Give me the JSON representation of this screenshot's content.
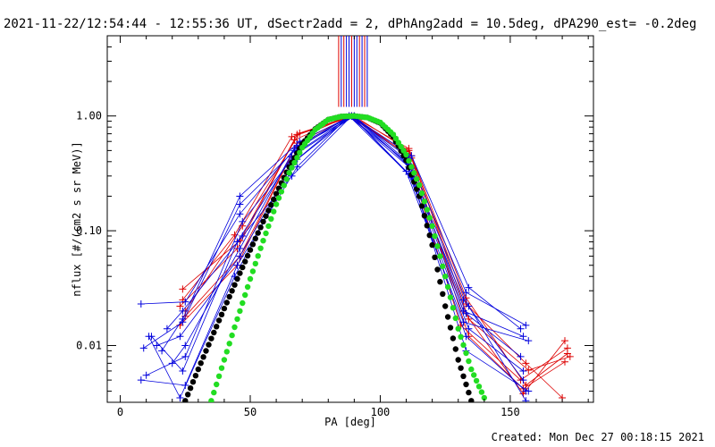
{
  "header": {
    "title": "2021-11-22/12:54:44 - 12:55:36 UT, dSectr2add = 2, dPhAng2add = 10.5deg, dPA290_est= -0.2deg"
  },
  "footer": {
    "created": "Created: Mon Dec 27 00:18:15 2021"
  },
  "colors": {
    "red": "#dd0000",
    "blue": "#0000dd",
    "black": "#000000",
    "green": "#22dd22"
  },
  "chart_data": {
    "type": "line",
    "title": "2021-11-22/12:54:44 - 12:55:36 UT, dSectr2add = 2, dPhAng2add = 10.5deg, dPA290_est= -0.2deg",
    "xlabel": "PA [deg]",
    "ylabel": "nflux [#/(cm2 s sr MeV)]",
    "xlim": [
      -5,
      182
    ],
    "ylim": [
      0.0032,
      5.0
    ],
    "yscale": "log",
    "grid": false,
    "x_ticks": [
      0,
      50,
      100,
      150
    ],
    "x_tick_labels": [
      "0",
      "50",
      "100",
      "150"
    ],
    "y_ticks": [
      0.01,
      0.1,
      1.0
    ],
    "y_tick_labels": [
      "0.01",
      "0.10",
      "1.00"
    ],
    "series": [
      {
        "color": "#dd0000",
        "x": [
          24,
          46,
          68,
          89,
          111,
          133,
          156,
          172
        ],
        "y": [
          0.031,
          0.082,
          0.69,
          1.0,
          0.52,
          0.026,
          0.0045,
          0.0085
        ]
      },
      {
        "color": "#dd0000",
        "x": [
          23,
          45,
          67,
          88,
          110,
          132,
          155,
          171
        ],
        "y": [
          0.022,
          0.07,
          0.62,
          1.0,
          0.49,
          0.02,
          0.0038,
          0.011
        ]
      },
      {
        "color": "#dd0000",
        "x": [
          25,
          46,
          68,
          89,
          112,
          134,
          157,
          173
        ],
        "y": [
          0.018,
          0.06,
          0.58,
          1.0,
          0.45,
          0.017,
          0.0061,
          0.008
        ]
      },
      {
        "color": "#dd0000",
        "x": [
          24,
          44,
          66,
          90,
          111,
          133,
          156,
          170
        ],
        "y": [
          0.025,
          0.092,
          0.66,
          1.0,
          0.5,
          0.023,
          0.007,
          0.0035
        ]
      },
      {
        "color": "#dd0000",
        "x": [
          23,
          45,
          67,
          88,
          110,
          131,
          154,
          172
        ],
        "y": [
          0.015,
          0.05,
          0.52,
          1.0,
          0.47,
          0.015,
          0.005,
          0.0095
        ]
      },
      {
        "color": "#dd0000",
        "x": [
          25,
          47,
          69,
          89,
          112,
          134,
          155,
          171
        ],
        "y": [
          0.02,
          0.11,
          0.71,
          1.0,
          0.43,
          0.012,
          0.0042,
          0.0072
        ]
      },
      {
        "color": "#0000dd",
        "x": [
          8,
          25,
          46,
          68,
          89,
          111,
          133,
          156
        ],
        "y": [
          0.023,
          0.024,
          0.14,
          0.55,
          1.0,
          0.43,
          0.029,
          0.015
        ]
      },
      {
        "color": "#0000dd",
        "x": [
          9,
          24,
          46,
          67,
          88,
          110,
          132,
          155
        ],
        "y": [
          0.0095,
          0.016,
          0.17,
          0.5,
          1.0,
          0.4,
          0.025,
          0.005
        ]
      },
      {
        "color": "#0000dd",
        "x": [
          10,
          25,
          47,
          68,
          89,
          111,
          134,
          156
        ],
        "y": [
          0.0055,
          0.008,
          0.12,
          0.48,
          1.0,
          0.38,
          0.022,
          0.0033
        ]
      },
      {
        "color": "#0000dd",
        "x": [
          12,
          24,
          45,
          66,
          90,
          112,
          133,
          154
        ],
        "y": [
          0.012,
          0.006,
          0.08,
          0.44,
          1.0,
          0.35,
          0.019,
          0.008
        ]
      },
      {
        "color": "#0000dd",
        "x": [
          14,
          23,
          46,
          67,
          89,
          110,
          132,
          157
        ],
        "y": [
          0.01,
          0.012,
          0.06,
          0.4,
          1.0,
          0.33,
          0.016,
          0.011
        ]
      },
      {
        "color": "#0000dd",
        "x": [
          8,
          25,
          45,
          68,
          88,
          111,
          134,
          155
        ],
        "y": [
          0.005,
          0.0045,
          0.05,
          0.36,
          1.0,
          0.31,
          0.014,
          0.006
        ]
      },
      {
        "color": "#0000dd",
        "x": [
          18,
          24,
          47,
          66,
          89,
          112,
          133,
          156
        ],
        "y": [
          0.014,
          0.02,
          0.09,
          0.3,
          1.0,
          0.29,
          0.012,
          0.004
        ]
      },
      {
        "color": "#0000dd",
        "x": [
          20,
          25,
          46,
          67,
          90,
          110,
          132,
          155
        ],
        "y": [
          0.007,
          0.01,
          0.07,
          0.52,
          1.0,
          0.41,
          0.02,
          0.012
        ]
      },
      {
        "color": "#0000dd",
        "x": [
          11,
          23,
          44,
          68,
          88,
          111,
          133,
          157
        ],
        "y": [
          0.012,
          0.0035,
          0.04,
          0.42,
          1.0,
          0.36,
          0.009,
          0.004
        ]
      },
      {
        "color": "#0000dd",
        "x": [
          16,
          24,
          46,
          69,
          89,
          112,
          134,
          154
        ],
        "y": [
          0.009,
          0.017,
          0.2,
          0.6,
          1.0,
          0.45,
          0.032,
          0.014
        ]
      },
      {
        "color": "#000000",
        "style": "dots",
        "x": [
          25,
          30,
          35,
          40,
          45,
          50,
          55,
          60,
          65,
          70,
          75,
          80,
          85,
          90,
          95,
          100,
          105,
          110,
          115,
          120,
          125,
          130,
          135
        ],
        "y": [
          0.0033,
          0.0062,
          0.0115,
          0.021,
          0.038,
          0.068,
          0.12,
          0.21,
          0.36,
          0.57,
          0.77,
          0.93,
          0.99,
          1.0,
          0.97,
          0.87,
          0.66,
          0.41,
          0.2,
          0.075,
          0.022,
          0.0075,
          0.0033
        ]
      },
      {
        "color": "#22dd22",
        "style": "dots",
        "x": [
          35,
          40,
          45,
          50,
          55,
          60,
          65,
          70,
          75,
          80,
          85,
          90,
          95,
          100,
          105,
          110,
          115,
          120,
          125,
          130,
          135,
          140
        ],
        "y": [
          0.0033,
          0.0075,
          0.017,
          0.038,
          0.082,
          0.17,
          0.32,
          0.53,
          0.76,
          0.93,
          0.99,
          1.0,
          0.97,
          0.88,
          0.69,
          0.46,
          0.25,
          0.11,
          0.04,
          0.014,
          0.0062,
          0.0035
        ]
      }
    ],
    "vertical_lines": {
      "x": [
        84,
        85,
        86,
        87,
        88,
        89,
        90,
        91,
        92,
        93,
        94,
        95
      ],
      "colors": [
        "#dd0000",
        "#0000dd",
        "#dd0000",
        "#0000dd",
        "#0000dd",
        "#dd0000",
        "#0000dd",
        "#0000dd",
        "#dd0000",
        "#0000dd",
        "#dd0000",
        "#0000dd"
      ],
      "y_from": 1.2
    }
  }
}
